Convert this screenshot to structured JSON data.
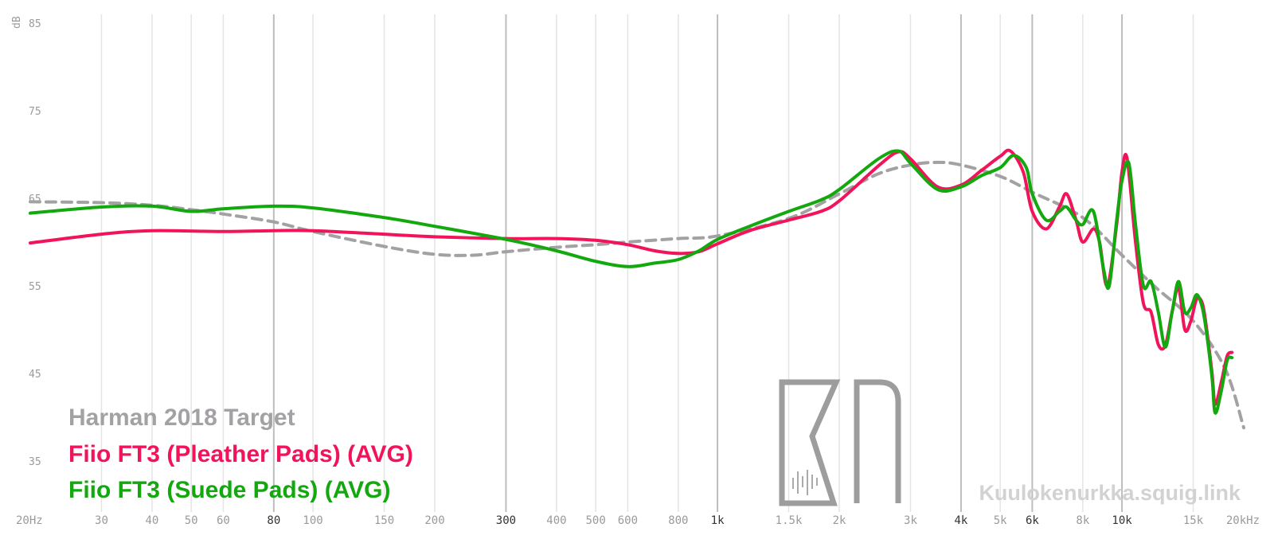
{
  "chart_data": {
    "type": "line",
    "ylabel": "dB",
    "ylim": [
      29,
      86
    ],
    "xlim": [
      20,
      20000
    ],
    "x_scale": "log",
    "grid": true,
    "legend_position": "bottom-left",
    "x_ticks": [
      {
        "value": 20,
        "label": "20Hz",
        "major": false
      },
      {
        "value": 30,
        "label": "30",
        "major": false
      },
      {
        "value": 40,
        "label": "40",
        "major": false
      },
      {
        "value": 50,
        "label": "50",
        "major": false
      },
      {
        "value": 60,
        "label": "60",
        "major": false
      },
      {
        "value": 80,
        "label": "80",
        "major": true
      },
      {
        "value": 100,
        "label": "100",
        "major": false
      },
      {
        "value": 150,
        "label": "150",
        "major": false
      },
      {
        "value": 200,
        "label": "200",
        "major": false
      },
      {
        "value": 300,
        "label": "300",
        "major": true
      },
      {
        "value": 400,
        "label": "400",
        "major": false
      },
      {
        "value": 500,
        "label": "500",
        "major": false
      },
      {
        "value": 600,
        "label": "600",
        "major": false
      },
      {
        "value": 800,
        "label": "800",
        "major": false
      },
      {
        "value": 1000,
        "label": "1k",
        "major": true
      },
      {
        "value": 1500,
        "label": "1.5k",
        "major": false
      },
      {
        "value": 2000,
        "label": "2k",
        "major": false
      },
      {
        "value": 3000,
        "label": "3k",
        "major": false
      },
      {
        "value": 4000,
        "label": "4k",
        "major": true
      },
      {
        "value": 5000,
        "label": "5k",
        "major": false
      },
      {
        "value": 6000,
        "label": "6k",
        "major": true
      },
      {
        "value": 8000,
        "label": "8k",
        "major": false
      },
      {
        "value": 10000,
        "label": "10k",
        "major": true
      },
      {
        "value": 15000,
        "label": "15k",
        "major": false
      },
      {
        "value": 20000,
        "label": "20kHz",
        "major": false
      }
    ],
    "y_ticks": [
      35,
      45,
      55,
      65,
      75,
      85
    ],
    "series": [
      {
        "name": "Harman 2018 Target",
        "color": "#a3a1a4",
        "dashed": true,
        "points": [
          [
            20,
            64.6
          ],
          [
            30,
            64.5
          ],
          [
            40,
            64.2
          ],
          [
            50,
            63.7
          ],
          [
            60,
            63.2
          ],
          [
            80,
            62.3
          ],
          [
            100,
            61.2
          ],
          [
            150,
            59.5
          ],
          [
            200,
            58.6
          ],
          [
            250,
            58.5
          ],
          [
            300,
            58.9
          ],
          [
            400,
            59.4
          ],
          [
            500,
            59.7
          ],
          [
            600,
            60
          ],
          [
            800,
            60.4
          ],
          [
            1000,
            60.7
          ],
          [
            1500,
            62.7
          ],
          [
            2000,
            65.5
          ],
          [
            2500,
            67.8
          ],
          [
            3000,
            68.8
          ],
          [
            3500,
            69.1
          ],
          [
            4000,
            68.8
          ],
          [
            5000,
            67.5
          ],
          [
            6000,
            65.7
          ],
          [
            8000,
            62.8
          ],
          [
            10000,
            58.5
          ],
          [
            12000,
            55
          ],
          [
            15000,
            51
          ],
          [
            18000,
            45.5
          ],
          [
            20000,
            38.8
          ]
        ]
      },
      {
        "name": "Fiio FT3 (Pleather Pads) (AVG)",
        "color": "#f1145a",
        "dashed": false,
        "points": [
          [
            20,
            59.9
          ],
          [
            30,
            60.9
          ],
          [
            40,
            61.3
          ],
          [
            60,
            61.2
          ],
          [
            80,
            61.3
          ],
          [
            100,
            61.3
          ],
          [
            150,
            60.9
          ],
          [
            200,
            60.6
          ],
          [
            300,
            60.4
          ],
          [
            400,
            60.4
          ],
          [
            500,
            60.2
          ],
          [
            600,
            59.7
          ],
          [
            700,
            59
          ],
          [
            800,
            58.7
          ],
          [
            900,
            58.9
          ],
          [
            1000,
            59.8
          ],
          [
            1200,
            61.3
          ],
          [
            1500,
            62.5
          ],
          [
            1800,
            63.5
          ],
          [
            2000,
            64.7
          ],
          [
            2500,
            68.7
          ],
          [
            2800,
            70.3
          ],
          [
            3000,
            69.5
          ],
          [
            3500,
            66.3
          ],
          [
            4000,
            66.5
          ],
          [
            4500,
            68.2
          ],
          [
            5000,
            69.8
          ],
          [
            5300,
            70.4
          ],
          [
            5700,
            68
          ],
          [
            6000,
            63.5
          ],
          [
            6500,
            61.5
          ],
          [
            7000,
            64
          ],
          [
            7300,
            65.5
          ],
          [
            7700,
            62.5
          ],
          [
            8000,
            60
          ],
          [
            8500,
            61.5
          ],
          [
            8800,
            60
          ],
          [
            9200,
            55
          ],
          [
            9700,
            62
          ],
          [
            10000,
            68
          ],
          [
            10300,
            69.5
          ],
          [
            10800,
            60
          ],
          [
            11300,
            53
          ],
          [
            11800,
            52
          ],
          [
            12300,
            48.3
          ],
          [
            12800,
            48.2
          ],
          [
            13300,
            52
          ],
          [
            13800,
            54.8
          ],
          [
            14300,
            50
          ],
          [
            14800,
            51
          ],
          [
            15300,
            53.5
          ],
          [
            15800,
            53
          ],
          [
            16200,
            50
          ],
          [
            16700,
            45
          ],
          [
            17000,
            41.5
          ],
          [
            17600,
            44
          ],
          [
            18200,
            47
          ],
          [
            18700,
            47.4
          ]
        ]
      },
      {
        "name": "Fiio FT3 (Suede Pads) (AVG)",
        "color": "#12a80e",
        "dashed": false,
        "points": [
          [
            20,
            63.3
          ],
          [
            30,
            64
          ],
          [
            40,
            64.1
          ],
          [
            50,
            63.5
          ],
          [
            60,
            63.8
          ],
          [
            80,
            64.1
          ],
          [
            100,
            63.9
          ],
          [
            150,
            62.8
          ],
          [
            200,
            61.8
          ],
          [
            300,
            60.3
          ],
          [
            400,
            59
          ],
          [
            500,
            57.8
          ],
          [
            600,
            57.2
          ],
          [
            700,
            57.6
          ],
          [
            800,
            58
          ],
          [
            900,
            59
          ],
          [
            1000,
            60.3
          ],
          [
            1200,
            61.8
          ],
          [
            1500,
            63.5
          ],
          [
            1800,
            64.8
          ],
          [
            2000,
            66
          ],
          [
            2500,
            69.5
          ],
          [
            2800,
            70.4
          ],
          [
            3000,
            69
          ],
          [
            3500,
            66
          ],
          [
            4000,
            66.3
          ],
          [
            4500,
            67.6
          ],
          [
            5000,
            68.5
          ],
          [
            5400,
            69.9
          ],
          [
            5800,
            68.5
          ],
          [
            6000,
            65.5
          ],
          [
            6500,
            62.5
          ],
          [
            7000,
            63.5
          ],
          [
            7300,
            64
          ],
          [
            7700,
            62.5
          ],
          [
            8000,
            62
          ],
          [
            8500,
            63.5
          ],
          [
            9000,
            57
          ],
          [
            9300,
            55
          ],
          [
            9700,
            62.5
          ],
          [
            10000,
            67
          ],
          [
            10400,
            69
          ],
          [
            10800,
            62
          ],
          [
            11300,
            55
          ],
          [
            11800,
            55.5
          ],
          [
            12300,
            52
          ],
          [
            12800,
            48
          ],
          [
            13300,
            52
          ],
          [
            13800,
            55.5
          ],
          [
            14300,
            52
          ],
          [
            14800,
            52.5
          ],
          [
            15300,
            54
          ],
          [
            15800,
            52.5
          ],
          [
            16200,
            49.5
          ],
          [
            16700,
            44.5
          ],
          [
            17000,
            40.5
          ],
          [
            17600,
            43
          ],
          [
            18200,
            46.5
          ],
          [
            18700,
            46.8
          ]
        ]
      }
    ]
  },
  "watermark": "Kuulokenurkka.squig.link",
  "logo_name": "KN logo"
}
